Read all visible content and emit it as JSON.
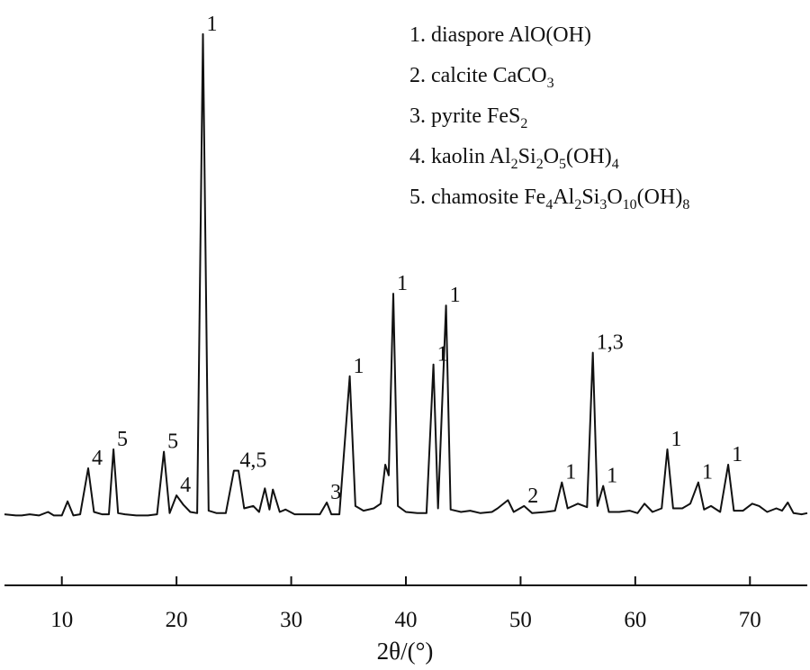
{
  "chart_data": {
    "type": "line",
    "title": "",
    "xlabel": "2θ/(°)",
    "ylabel": "",
    "xlim": [
      5,
      75
    ],
    "xticks": [
      10,
      20,
      30,
      40,
      50,
      60,
      70
    ],
    "y_axis_visible": false,
    "grid": false,
    "series": [
      {
        "points": [
          [
            5.0,
            0.03
          ],
          [
            6.0,
            0.02
          ],
          [
            6.5,
            0.02
          ],
          [
            7.2,
            0.03
          ],
          [
            8.0,
            0.02
          ],
          [
            8.8,
            0.05
          ],
          [
            9.3,
            0.02
          ],
          [
            10.0,
            0.02
          ],
          [
            10.5,
            0.14
          ],
          [
            11.0,
            0.02
          ],
          [
            11.6,
            0.03
          ],
          [
            12.3,
            0.42
          ],
          [
            12.8,
            0.05
          ],
          [
            13.5,
            0.03
          ],
          [
            14.1,
            0.03
          ],
          [
            14.5,
            0.58
          ],
          [
            14.9,
            0.04
          ],
          [
            15.5,
            0.03
          ],
          [
            16.5,
            0.02
          ],
          [
            17.5,
            0.02
          ],
          [
            18.3,
            0.03
          ],
          [
            18.9,
            0.56
          ],
          [
            19.4,
            0.04
          ],
          [
            20.0,
            0.19
          ],
          [
            20.6,
            0.11
          ],
          [
            21.2,
            0.05
          ],
          [
            21.8,
            0.04
          ],
          [
            22.3,
            4.1
          ],
          [
            22.8,
            0.06
          ],
          [
            23.5,
            0.04
          ],
          [
            24.3,
            0.04
          ],
          [
            25.0,
            0.4
          ],
          [
            25.4,
            0.4
          ],
          [
            25.9,
            0.08
          ],
          [
            26.7,
            0.1
          ],
          [
            27.2,
            0.05
          ],
          [
            27.7,
            0.25
          ],
          [
            28.1,
            0.07
          ],
          [
            28.4,
            0.24
          ],
          [
            29.0,
            0.05
          ],
          [
            29.5,
            0.07
          ],
          [
            30.3,
            0.03
          ],
          [
            31.5,
            0.03
          ],
          [
            32.5,
            0.03
          ],
          [
            33.1,
            0.13
          ],
          [
            33.5,
            0.03
          ],
          [
            34.2,
            0.03
          ],
          [
            35.1,
            1.2
          ],
          [
            35.6,
            0.1
          ],
          [
            36.3,
            0.06
          ],
          [
            37.2,
            0.08
          ],
          [
            37.8,
            0.12
          ],
          [
            38.2,
            0.45
          ],
          [
            38.5,
            0.36
          ],
          [
            38.9,
            1.9
          ],
          [
            39.3,
            0.1
          ],
          [
            40.0,
            0.05
          ],
          [
            41.0,
            0.04
          ],
          [
            41.8,
            0.04
          ],
          [
            42.4,
            1.3
          ],
          [
            42.8,
            0.08
          ],
          [
            43.5,
            1.8
          ],
          [
            43.9,
            0.07
          ],
          [
            44.8,
            0.05
          ],
          [
            45.6,
            0.06
          ],
          [
            46.5,
            0.04
          ],
          [
            47.5,
            0.05
          ],
          [
            48.0,
            0.08
          ],
          [
            48.9,
            0.15
          ],
          [
            49.4,
            0.05
          ],
          [
            50.3,
            0.1
          ],
          [
            51.0,
            0.04
          ],
          [
            52.2,
            0.05
          ],
          [
            53.0,
            0.06
          ],
          [
            53.6,
            0.3
          ],
          [
            54.1,
            0.08
          ],
          [
            55.0,
            0.12
          ],
          [
            55.8,
            0.09
          ],
          [
            56.3,
            1.4
          ],
          [
            56.7,
            0.1
          ],
          [
            57.2,
            0.27
          ],
          [
            57.7,
            0.05
          ],
          [
            58.6,
            0.05
          ],
          [
            59.5,
            0.06
          ],
          [
            60.2,
            0.04
          ],
          [
            60.8,
            0.12
          ],
          [
            61.5,
            0.05
          ],
          [
            62.3,
            0.08
          ],
          [
            62.8,
            0.58
          ],
          [
            63.3,
            0.08
          ],
          [
            64.1,
            0.08
          ],
          [
            64.8,
            0.12
          ],
          [
            65.5,
            0.3
          ],
          [
            66.0,
            0.07
          ],
          [
            66.6,
            0.1
          ],
          [
            67.4,
            0.05
          ],
          [
            68.1,
            0.45
          ],
          [
            68.6,
            0.06
          ],
          [
            69.4,
            0.06
          ],
          [
            70.2,
            0.12
          ],
          [
            70.8,
            0.1
          ],
          [
            71.5,
            0.05
          ],
          [
            72.3,
            0.08
          ],
          [
            72.8,
            0.06
          ],
          [
            73.3,
            0.13
          ],
          [
            73.8,
            0.04
          ],
          [
            74.5,
            0.03
          ],
          [
            75.0,
            0.04
          ]
        ]
      }
    ],
    "peak_labels": [
      {
        "text": "4",
        "x": 12.3,
        "y": 0.42
      },
      {
        "text": "5",
        "x": 14.5,
        "y": 0.58
      },
      {
        "text": "5",
        "x": 18.9,
        "y": 0.56
      },
      {
        "text": "4",
        "x": 20.0,
        "y": 0.19
      },
      {
        "text": "1",
        "x": 22.3,
        "y": 4.1
      },
      {
        "text": "4,5",
        "x": 25.2,
        "y": 0.4
      },
      {
        "text": "3",
        "x": 33.1,
        "y": 0.13
      },
      {
        "text": "1",
        "x": 35.1,
        "y": 1.2
      },
      {
        "text": "1",
        "x": 38.9,
        "y": 1.9
      },
      {
        "text": "1",
        "x": 42.4,
        "y": 1.3
      },
      {
        "text": "1",
        "x": 43.5,
        "y": 1.8
      },
      {
        "text": "2",
        "x": 50.3,
        "y": 0.1
      },
      {
        "text": "1",
        "x": 53.6,
        "y": 0.3
      },
      {
        "text": "1,3",
        "x": 56.3,
        "y": 1.4
      },
      {
        "text": "1",
        "x": 57.2,
        "y": 0.27
      },
      {
        "text": "1",
        "x": 62.8,
        "y": 0.58
      },
      {
        "text": "1",
        "x": 65.5,
        "y": 0.3
      },
      {
        "text": "1",
        "x": 68.1,
        "y": 0.45
      }
    ],
    "legend": {
      "placement": "top-right",
      "entries": [
        {
          "num": "1.",
          "name": "diaspore",
          "formula": [
            [
              "AlO(OH)",
              ""
            ]
          ]
        },
        {
          "num": "2.",
          "name": "calcite",
          "formula": [
            [
              "CaCO",
              ""
            ],
            [
              "3",
              "sub"
            ]
          ]
        },
        {
          "num": "3.",
          "name": "pyrite",
          "formula": [
            [
              "FeS",
              ""
            ],
            [
              "2",
              "sub"
            ]
          ]
        },
        {
          "num": "4.",
          "name": "kaolin",
          "formula": [
            [
              "Al",
              ""
            ],
            [
              "2",
              "sub"
            ],
            [
              "Si",
              ""
            ],
            [
              "2",
              "sub"
            ],
            [
              "O",
              ""
            ],
            [
              "5",
              "sub"
            ],
            [
              "(OH)",
              ""
            ],
            [
              "4",
              "sub"
            ]
          ]
        },
        {
          "num": "5.",
          "name": "chamosite",
          "formula": [
            [
              "Fe",
              ""
            ],
            [
              "4",
              "sub"
            ],
            [
              "Al",
              ""
            ],
            [
              "2",
              "sub"
            ],
            [
              "Si",
              ""
            ],
            [
              "3",
              "sub"
            ],
            [
              "O",
              ""
            ],
            [
              "10",
              "sub"
            ],
            [
              "(OH)",
              ""
            ],
            [
              "8",
              "sub"
            ]
          ]
        }
      ]
    }
  }
}
